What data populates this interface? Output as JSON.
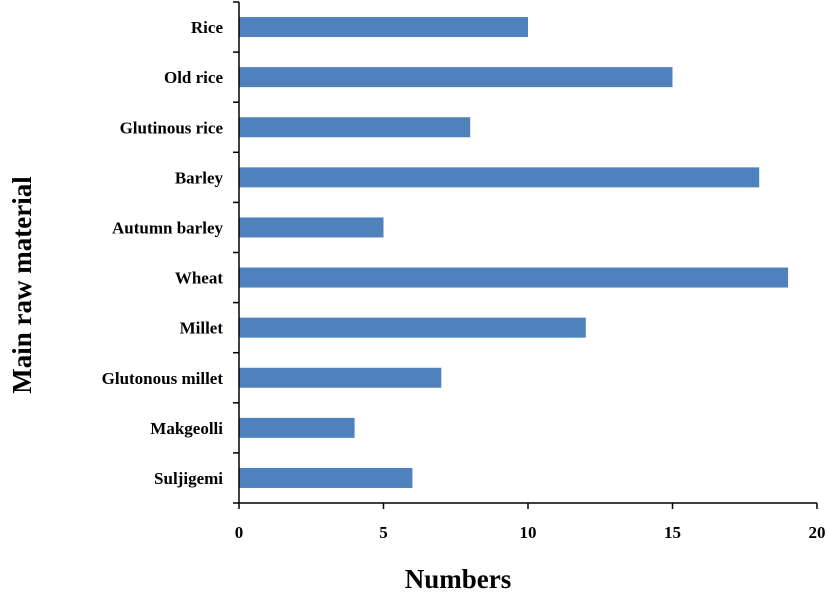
{
  "chart_data": {
    "type": "bar",
    "orientation": "horizontal",
    "categories": [
      "Rice",
      "Old rice",
      "Glutinous rice",
      "Barley",
      "Autumn barley",
      "Wheat",
      "Millet",
      "Glutonous millet",
      "Makgeolli",
      "Suljigemi"
    ],
    "values": [
      10,
      15,
      8,
      18,
      5,
      19,
      12,
      7,
      4,
      6
    ],
    "xlabel": "Numbers",
    "ylabel": "Main raw material",
    "xlim": [
      0,
      20
    ],
    "xticks": [
      0,
      5,
      10,
      15,
      20
    ],
    "grid": false,
    "legend": "none",
    "bar_color": "#4f81bd"
  }
}
